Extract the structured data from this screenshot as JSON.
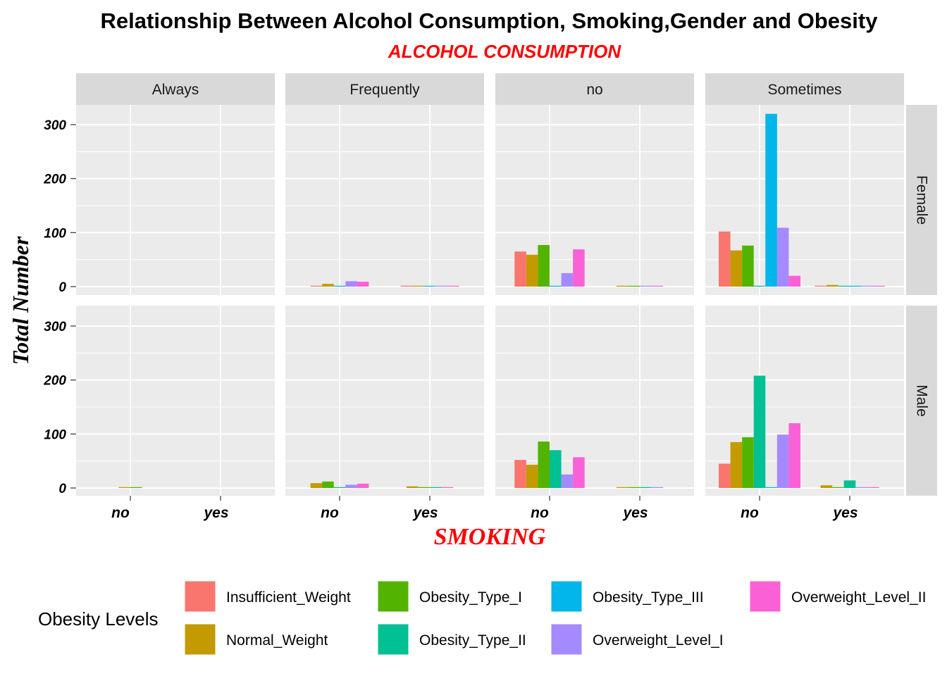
{
  "chart_data": {
    "type": "bar",
    "title": "Relationship Between Alcohol Consumption, Smoking,Gender and Obesity",
    "subtitle": "ALCOHOL CONSUMPTION",
    "xlabel": "SMOKING",
    "ylabel": "Total Number",
    "facet_cols": [
      "Always",
      "Frequently",
      "no",
      "Sometimes"
    ],
    "facet_rows": [
      "Female",
      "Male"
    ],
    "x_categories": [
      "no",
      "yes"
    ],
    "ylim": [
      0,
      340
    ],
    "y_ticks": [
      0,
      100,
      200,
      300
    ],
    "grid": true,
    "legend_position": "bottom",
    "legend_title": "Obesity Levels",
    "levels": [
      "Insufficient_Weight",
      "Normal_Weight",
      "Obesity_Type_I",
      "Obesity_Type_II",
      "Obesity_Type_III",
      "Overweight_Level_I",
      "Overweight_Level_II"
    ],
    "colors": [
      "#f8766d",
      "#c49a00",
      "#53b400",
      "#00c094",
      "#00b6eb",
      "#a58aff",
      "#fb61d7"
    ],
    "panels": [
      {
        "row": "Female",
        "col": "Always",
        "groups": {
          "no": [],
          "yes": []
        }
      },
      {
        "row": "Female",
        "col": "Frequently",
        "groups": {
          "no": {
            "Insufficient_Weight": 1,
            "Normal_Weight": 5,
            "Obesity_Type_III": 1,
            "Overweight_Level_I": 10,
            "Overweight_Level_II": 9
          },
          "yes": {
            "Insufficient_Weight": 1,
            "Normal_Weight": 1,
            "Obesity_Type_III": 1,
            "Overweight_Level_I": 1,
            "Overweight_Level_II": 1
          }
        }
      },
      {
        "row": "Female",
        "col": "no",
        "groups": {
          "no": {
            "Insufficient_Weight": 65,
            "Normal_Weight": 59,
            "Obesity_Type_I": 77,
            "Obesity_Type_III": 1,
            "Overweight_Level_I": 25,
            "Overweight_Level_II": 69
          },
          "yes": {
            "Normal_Weight": 1,
            "Obesity_Type_I": 1,
            "Overweight_Level_I": 1,
            "Overweight_Level_II": 1
          }
        }
      },
      {
        "row": "Female",
        "col": "Sometimes",
        "groups": {
          "no": {
            "Insufficient_Weight": 102,
            "Normal_Weight": 67,
            "Obesity_Type_I": 76,
            "Obesity_Type_II": 1,
            "Obesity_Type_III": 320,
            "Overweight_Level_I": 109,
            "Overweight_Level_II": 20
          },
          "yes": {
            "Insufficient_Weight": 1,
            "Normal_Weight": 3,
            "Obesity_Type_II": 1,
            "Obesity_Type_III": 1,
            "Overweight_Level_I": 1,
            "Overweight_Level_II": 1
          }
        }
      },
      {
        "row": "Male",
        "col": "Always",
        "groups": {
          "no": {
            "Normal_Weight": 1,
            "Obesity_Type_I": 1
          },
          "yes": []
        }
      },
      {
        "row": "Male",
        "col": "Frequently",
        "groups": {
          "no": {
            "Normal_Weight": 9,
            "Obesity_Type_I": 12,
            "Obesity_Type_II": 1,
            "Overweight_Level_I": 6,
            "Overweight_Level_II": 8
          },
          "yes": {
            "Normal_Weight": 3,
            "Obesity_Type_I": 1,
            "Obesity_Type_II": 1,
            "Overweight_Level_II": 1
          }
        }
      },
      {
        "row": "Male",
        "col": "no",
        "groups": {
          "no": {
            "Insufficient_Weight": 52,
            "Normal_Weight": 43,
            "Obesity_Type_I": 86,
            "Obesity_Type_II": 70,
            "Overweight_Level_I": 25,
            "Overweight_Level_II": 57
          },
          "yes": {
            "Normal_Weight": 1,
            "Obesity_Type_I": 1,
            "Obesity_Type_II": 1,
            "Overweight_Level_I": 1
          }
        }
      },
      {
        "row": "Male",
        "col": "Sometimes",
        "groups": {
          "no": {
            "Insufficient_Weight": 45,
            "Normal_Weight": 85,
            "Obesity_Type_I": 94,
            "Obesity_Type_II": 208,
            "Obesity_Type_III": 1,
            "Overweight_Level_I": 99,
            "Overweight_Level_II": 120
          },
          "yes": {
            "Normal_Weight": 5,
            "Obesity_Type_I": 1,
            "Obesity_Type_II": 14,
            "Overweight_Level_I": 1,
            "Overweight_Level_II": 1
          }
        }
      }
    ]
  }
}
